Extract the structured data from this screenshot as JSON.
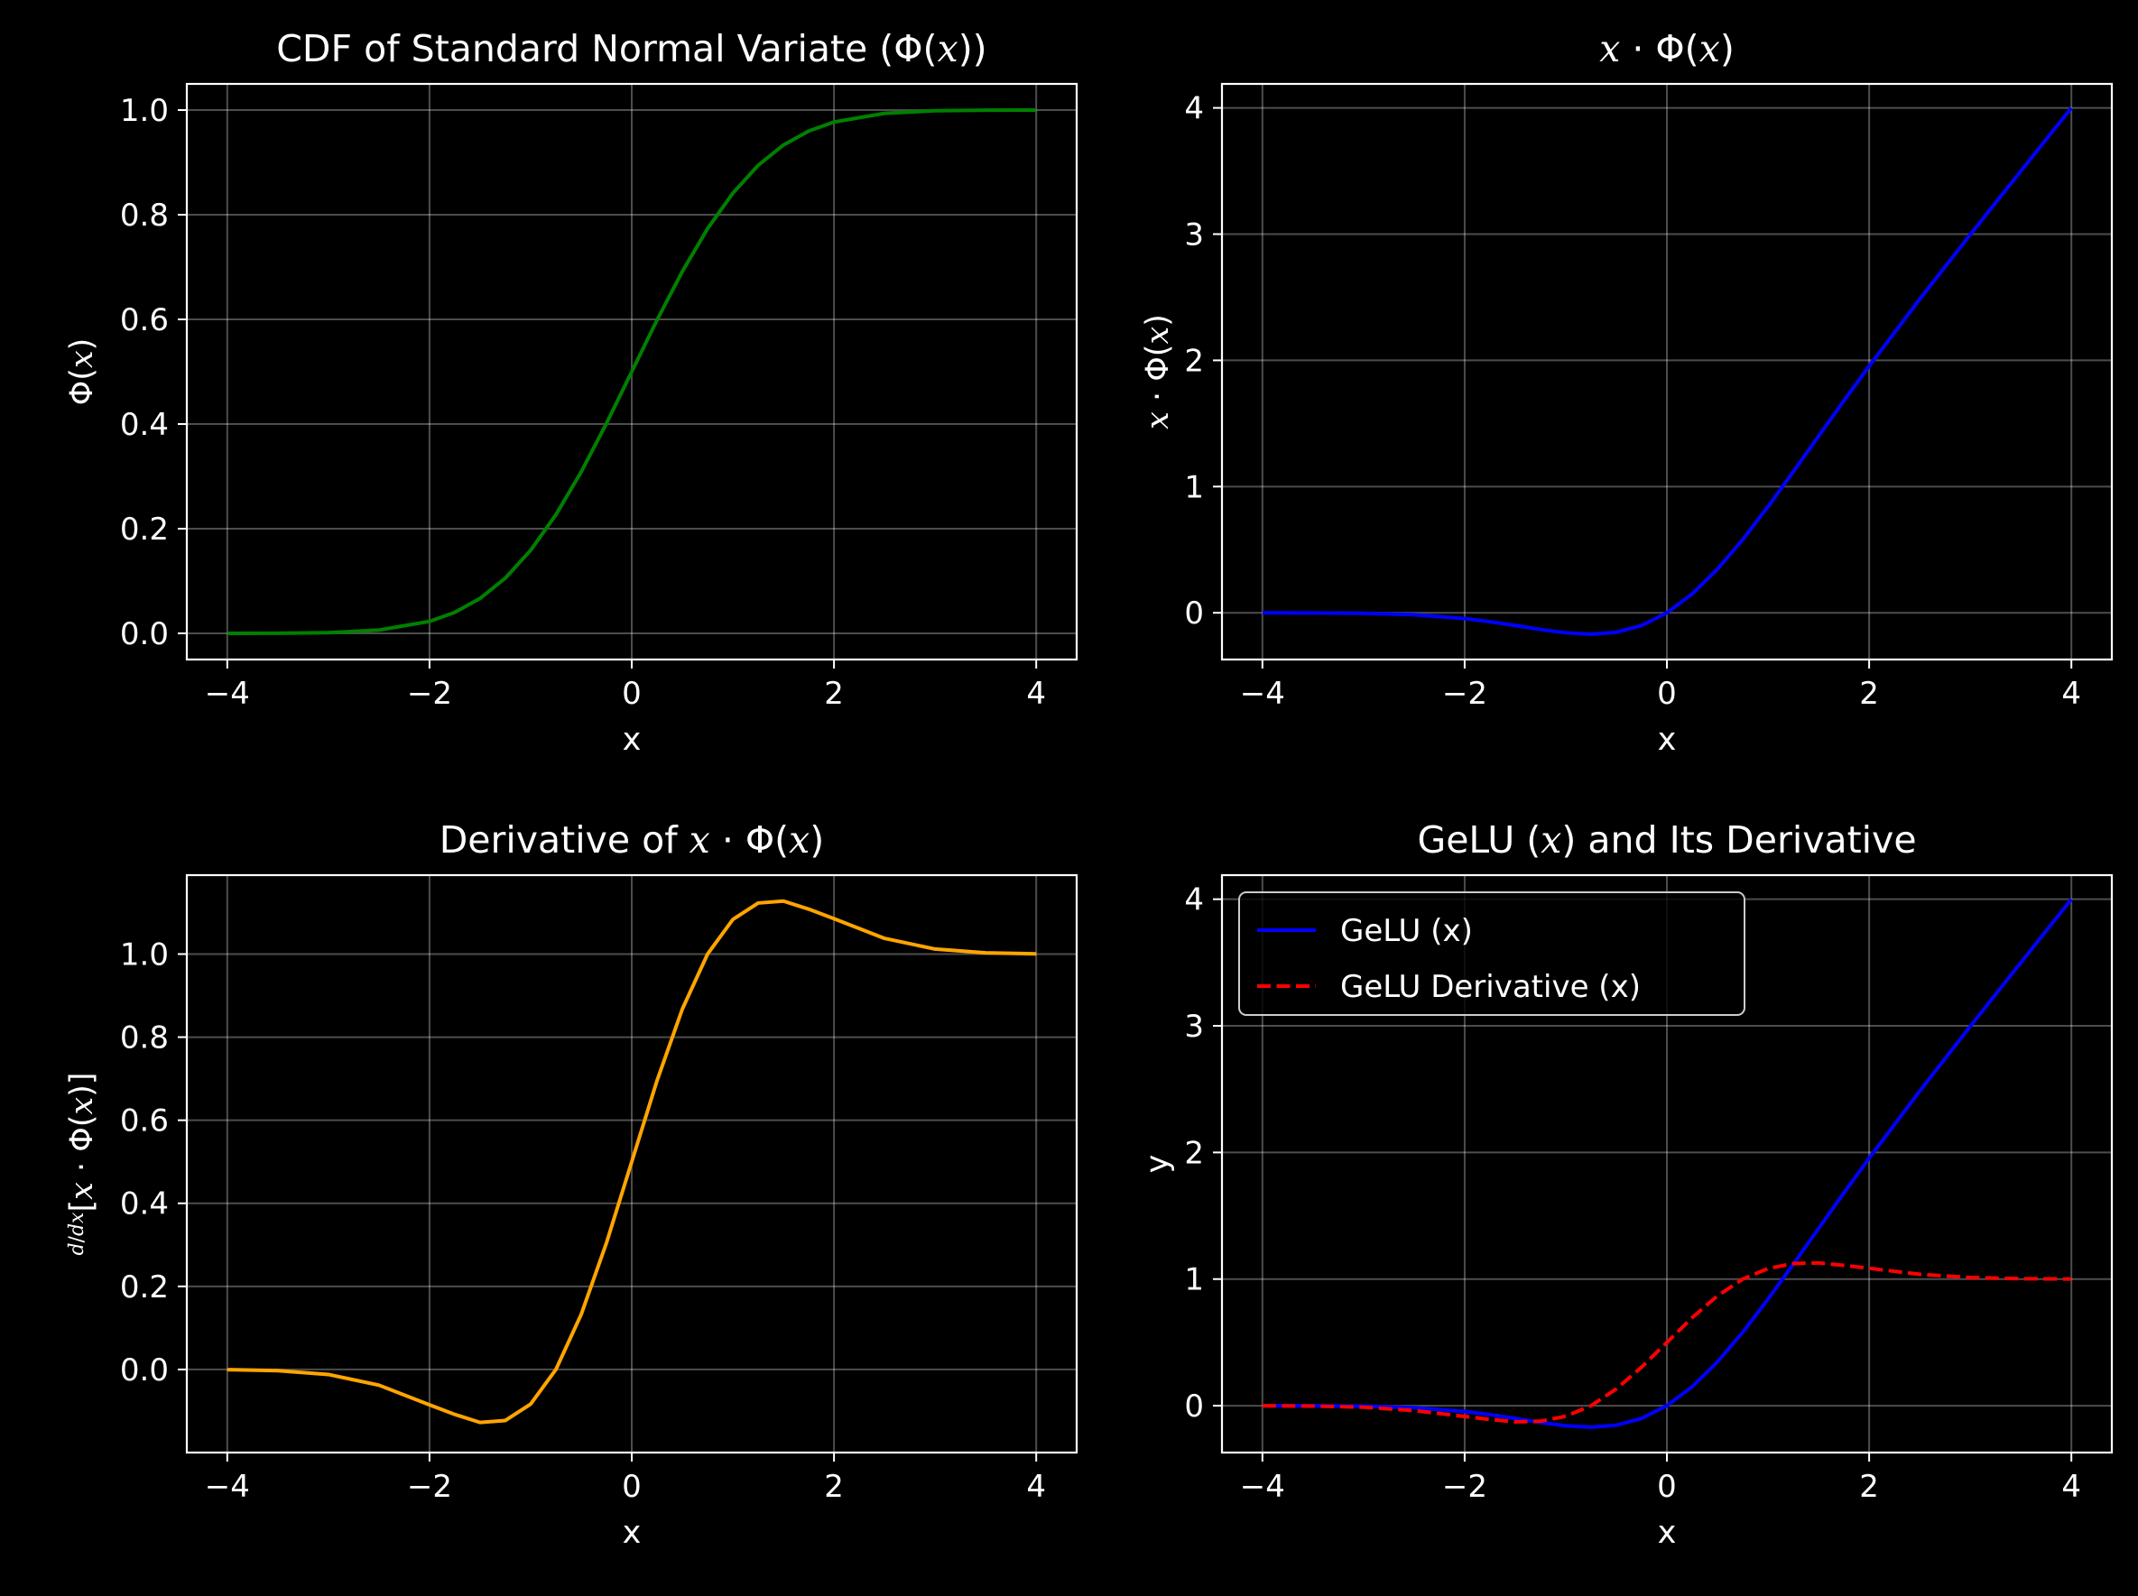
{
  "figure": {
    "background": "#000000",
    "grid_color": "#ffffff",
    "grid": true
  },
  "chart_data": [
    {
      "type": "line",
      "id": "cdf",
      "title": "CDF of Standard Normal Variate (Φ(x))",
      "title_parts": [
        {
          "text": "CDF of Standard Normal Variate (Φ(",
          "math": false
        },
        {
          "text": "x",
          "math": true
        },
        {
          "text": "))",
          "math": false
        }
      ],
      "xlabel": "x",
      "ylabel": "Φ(x)",
      "ylabel_parts": [
        {
          "text": "Φ(",
          "math": false
        },
        {
          "text": "x",
          "math": true
        },
        {
          "text": ")",
          "math": false
        }
      ],
      "xlim": [
        -4.4,
        4.4
      ],
      "ylim": [
        -0.05,
        1.05
      ],
      "xticks": [
        -4,
        -2,
        0,
        2,
        4
      ],
      "xtick_labels": [
        "−4",
        "−2",
        "0",
        "2",
        "4"
      ],
      "yticks": [
        0.0,
        0.2,
        0.4,
        0.6,
        0.8,
        1.0
      ],
      "ytick_labels": [
        "0.0",
        "0.2",
        "0.4",
        "0.6",
        "0.8",
        "1.0"
      ],
      "series": [
        {
          "color": "#008000",
          "style": "solid",
          "x": [
            -4,
            -3.5,
            -3,
            -2.5,
            -2,
            -1.75,
            -1.5,
            -1.25,
            -1,
            -0.75,
            -0.5,
            -0.25,
            0,
            0.25,
            0.5,
            0.75,
            1,
            1.25,
            1.5,
            1.75,
            2,
            2.5,
            3,
            3.5,
            4
          ],
          "y": [
            0.0,
            0.0002,
            0.0013,
            0.0062,
            0.0228,
            0.0401,
            0.0668,
            0.1056,
            0.1587,
            0.2266,
            0.3085,
            0.4013,
            0.5,
            0.5987,
            0.6915,
            0.7734,
            0.8413,
            0.8944,
            0.9332,
            0.9599,
            0.9772,
            0.9938,
            0.9987,
            0.9998,
            1.0
          ]
        }
      ]
    },
    {
      "type": "line",
      "id": "xphi",
      "title": "x · Φ(x)",
      "title_parts": [
        {
          "text": "x",
          "math": true
        },
        {
          "text": " · Φ(",
          "math": false
        },
        {
          "text": "x",
          "math": true
        },
        {
          "text": ")",
          "math": false
        }
      ],
      "xlabel": "x",
      "ylabel": "x · Φ(x)",
      "ylabel_parts": [
        {
          "text": "x",
          "math": true
        },
        {
          "text": " · Φ(",
          "math": false
        },
        {
          "text": "x",
          "math": true
        },
        {
          "text": ")",
          "math": false
        }
      ],
      "xlim": [
        -4.4,
        4.4
      ],
      "ylim": [
        -0.37,
        4.19
      ],
      "xticks": [
        -4,
        -2,
        0,
        2,
        4
      ],
      "xtick_labels": [
        "−4",
        "−2",
        "0",
        "2",
        "4"
      ],
      "yticks": [
        0,
        1,
        2,
        3,
        4
      ],
      "ytick_labels": [
        "0",
        "1",
        "2",
        "3",
        "4"
      ],
      "series": [
        {
          "color": "#0000ff",
          "style": "solid",
          "x": [
            -4,
            -3.5,
            -3,
            -2.5,
            -2,
            -1.75,
            -1.5,
            -1.25,
            -1,
            -0.75,
            -0.5,
            -0.25,
            0,
            0.25,
            0.5,
            0.75,
            1,
            1.25,
            1.5,
            1.75,
            2,
            2.5,
            3,
            3.5,
            4
          ],
          "y": [
            -0.0001,
            -0.0008,
            -0.004,
            -0.0155,
            -0.0455,
            -0.0702,
            -0.1002,
            -0.132,
            -0.1587,
            -0.17,
            -0.1543,
            -0.1003,
            0,
            0.1497,
            0.3457,
            0.58,
            0.8413,
            1.118,
            1.3998,
            1.6798,
            1.9545,
            2.4845,
            2.996,
            3.4992,
            3.9999
          ]
        }
      ]
    },
    {
      "type": "line",
      "id": "deriv",
      "title": "Derivative of x · Φ(x)",
      "title_parts": [
        {
          "text": "Derivative of ",
          "math": false
        },
        {
          "text": "x",
          "math": true
        },
        {
          "text": " · Φ(",
          "math": false
        },
        {
          "text": "x",
          "math": true
        },
        {
          "text": ")",
          "math": false
        }
      ],
      "xlabel": "x",
      "ylabel": "d/dx [x · Φ(x)]",
      "xlim": [
        -4.4,
        4.4
      ],
      "ylim": [
        -0.2,
        1.19
      ],
      "xticks": [
        -4,
        -2,
        0,
        2,
        4
      ],
      "xtick_labels": [
        "−4",
        "−2",
        "0",
        "2",
        "4"
      ],
      "yticks": [
        0.0,
        0.2,
        0.4,
        0.6,
        0.8,
        1.0
      ],
      "ytick_labels": [
        "0.0",
        "0.2",
        "0.4",
        "0.6",
        "0.8",
        "1.0"
      ],
      "series": [
        {
          "color": "#ffa500",
          "style": "solid",
          "x": [
            -4,
            -3.5,
            -3,
            -2.5,
            -2,
            -1.75,
            -1.5,
            -1.25,
            -1,
            -0.75,
            -0.5,
            -0.25,
            0,
            0.25,
            0.5,
            0.75,
            1,
            1.25,
            1.5,
            1.75,
            2,
            2.5,
            3,
            3.5,
            4
          ],
          "y": [
            -0.0005,
            -0.0029,
            -0.0121,
            -0.0378,
            -0.0852,
            -0.1082,
            -0.1275,
            -0.1228,
            -0.0833,
            -0.0,
            0.1325,
            0.3047,
            0.5,
            0.6953,
            0.8675,
            1.0,
            1.0833,
            1.1228,
            1.1275,
            1.1082,
            1.0852,
            1.0378,
            1.0121,
            1.0029,
            1.0005
          ]
        }
      ]
    },
    {
      "type": "line",
      "id": "gelu",
      "title": "GeLU (x) and Its Derivative",
      "title_parts": [
        {
          "text": "GeLU (",
          "math": false
        },
        {
          "text": "x",
          "math": true
        },
        {
          "text": ") and Its Derivative",
          "math": false
        }
      ],
      "xlabel": "x",
      "ylabel": "y",
      "xlim": [
        -4.4,
        4.4
      ],
      "ylim": [
        -0.37,
        4.19
      ],
      "xticks": [
        -4,
        -2,
        0,
        2,
        4
      ],
      "xtick_labels": [
        "−4",
        "−2",
        "0",
        "2",
        "4"
      ],
      "yticks": [
        0,
        1,
        2,
        3,
        4
      ],
      "ytick_labels": [
        "0",
        "1",
        "2",
        "3",
        "4"
      ],
      "legend": "top-left",
      "series": [
        {
          "name": "GeLU (x)",
          "color": "#0000ff",
          "style": "solid",
          "x": [
            -4,
            -3.5,
            -3,
            -2.5,
            -2,
            -1.75,
            -1.5,
            -1.25,
            -1,
            -0.75,
            -0.5,
            -0.25,
            0,
            0.25,
            0.5,
            0.75,
            1,
            1.25,
            1.5,
            1.75,
            2,
            2.5,
            3,
            3.5,
            4
          ],
          "y": [
            -0.0001,
            -0.0008,
            -0.004,
            -0.0155,
            -0.0455,
            -0.0702,
            -0.1002,
            -0.132,
            -0.1587,
            -0.17,
            -0.1543,
            -0.1003,
            0,
            0.1497,
            0.3457,
            0.58,
            0.8413,
            1.118,
            1.3998,
            1.6798,
            1.9545,
            2.4845,
            2.996,
            3.4992,
            3.9999
          ]
        },
        {
          "name": "GeLU Derivative (x)",
          "color": "#ff0000",
          "style": "dashed",
          "x": [
            -4,
            -3.5,
            -3,
            -2.5,
            -2,
            -1.75,
            -1.5,
            -1.25,
            -1,
            -0.75,
            -0.5,
            -0.25,
            0,
            0.25,
            0.5,
            0.75,
            1,
            1.25,
            1.5,
            1.75,
            2,
            2.5,
            3,
            3.5,
            4
          ],
          "y": [
            -0.0005,
            -0.0029,
            -0.0121,
            -0.0378,
            -0.0852,
            -0.1082,
            -0.1275,
            -0.1228,
            -0.0833,
            -0.0,
            0.1325,
            0.3047,
            0.5,
            0.6953,
            0.8675,
            1.0,
            1.0833,
            1.1228,
            1.1275,
            1.1082,
            1.0852,
            1.0378,
            1.0121,
            1.0029,
            1.0005
          ]
        }
      ]
    }
  ]
}
